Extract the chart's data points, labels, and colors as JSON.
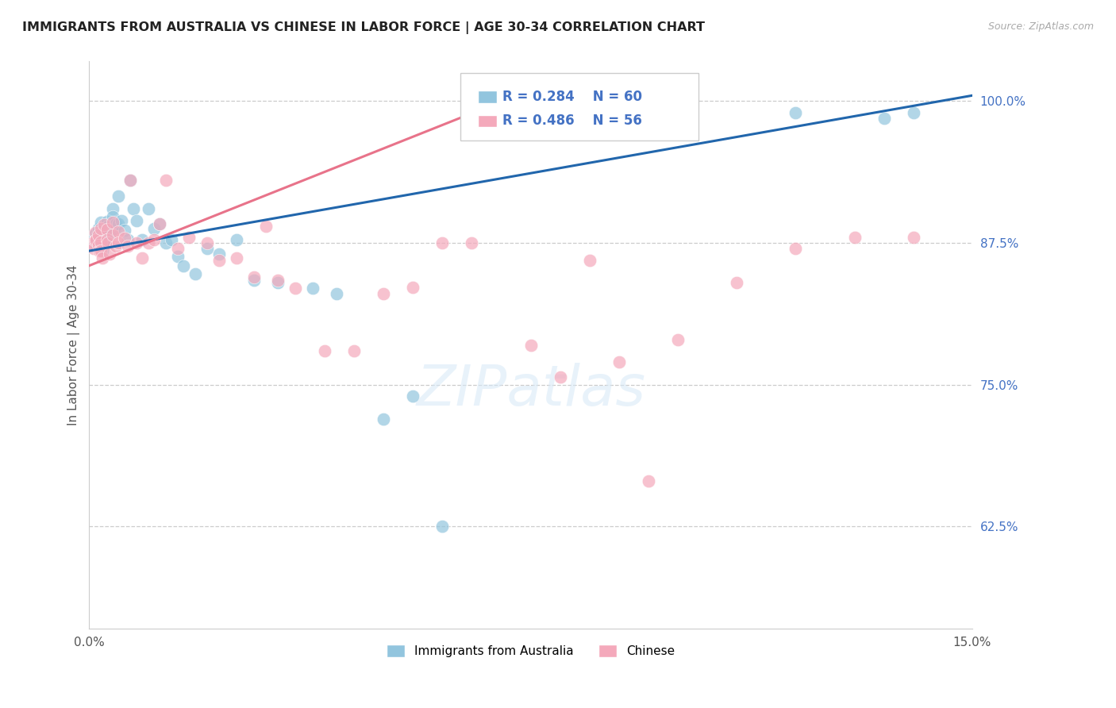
{
  "title": "IMMIGRANTS FROM AUSTRALIA VS CHINESE IN LABOR FORCE | AGE 30-34 CORRELATION CHART",
  "source": "Source: ZipAtlas.com",
  "ylabel": "In Labor Force | Age 30-34",
  "ytick_labels": [
    "100.0%",
    "87.5%",
    "75.0%",
    "62.5%"
  ],
  "ytick_values": [
    1.0,
    0.875,
    0.75,
    0.625
  ],
  "xlim": [
    0.0,
    0.15
  ],
  "ylim": [
    0.535,
    1.035
  ],
  "legend_r1": "0.284",
  "legend_n1": "60",
  "legend_r2": "0.486",
  "legend_n2": "56",
  "legend_label1": "Immigrants from Australia",
  "legend_label2": "Chinese",
  "australia_color": "#92c5de",
  "chinese_color": "#f4a9bb",
  "australia_line_color": "#2166ac",
  "chinese_line_color": "#e8738a",
  "australia_x": [
    0.0005,
    0.0007,
    0.0008,
    0.001,
    0.001,
    0.0012,
    0.0012,
    0.0015,
    0.0015,
    0.0017,
    0.002,
    0.002,
    0.002,
    0.0022,
    0.0025,
    0.003,
    0.003,
    0.003,
    0.0032,
    0.0035,
    0.004,
    0.004,
    0.0042,
    0.0045,
    0.005,
    0.005,
    0.0055,
    0.006,
    0.0065,
    0.007,
    0.0075,
    0.008,
    0.009,
    0.01,
    0.011,
    0.012,
    0.013,
    0.014,
    0.015,
    0.016,
    0.018,
    0.02,
    0.022,
    0.025,
    0.028,
    0.032,
    0.038,
    0.042,
    0.05,
    0.055,
    0.06,
    0.065,
    0.07,
    0.085,
    0.09,
    0.095,
    0.1,
    0.12,
    0.135,
    0.14
  ],
  "australia_y": [
    0.875,
    0.878,
    0.872,
    0.883,
    0.877,
    0.88,
    0.873,
    0.888,
    0.879,
    0.872,
    0.893,
    0.885,
    0.876,
    0.868,
    0.878,
    0.894,
    0.886,
    0.878,
    0.89,
    0.882,
    0.905,
    0.898,
    0.888,
    0.892,
    0.916,
    0.892,
    0.895,
    0.886,
    0.878,
    0.93,
    0.905,
    0.895,
    0.878,
    0.905,
    0.888,
    0.892,
    0.875,
    0.878,
    0.863,
    0.855,
    0.848,
    0.87,
    0.865,
    0.878,
    0.842,
    0.84,
    0.835,
    0.83,
    0.72,
    0.74,
    0.625,
    1.0,
    0.98,
    0.98,
    1.0,
    0.98,
    1.0,
    0.99,
    0.985,
    0.99
  ],
  "chinese_x": [
    0.0005,
    0.0007,
    0.001,
    0.001,
    0.0012,
    0.0015,
    0.0015,
    0.0017,
    0.002,
    0.002,
    0.002,
    0.0022,
    0.0025,
    0.003,
    0.003,
    0.0032,
    0.0035,
    0.004,
    0.004,
    0.0045,
    0.005,
    0.005,
    0.006,
    0.0065,
    0.007,
    0.008,
    0.009,
    0.01,
    0.011,
    0.012,
    0.013,
    0.015,
    0.017,
    0.02,
    0.022,
    0.025,
    0.028,
    0.03,
    0.032,
    0.035,
    0.04,
    0.045,
    0.05,
    0.055,
    0.06,
    0.065,
    0.075,
    0.08,
    0.085,
    0.09,
    0.095,
    0.1,
    0.11,
    0.12,
    0.13,
    0.14
  ],
  "chinese_y": [
    0.875,
    0.87,
    0.884,
    0.877,
    0.878,
    0.882,
    0.873,
    0.868,
    0.888,
    0.876,
    0.868,
    0.862,
    0.891,
    0.887,
    0.878,
    0.875,
    0.865,
    0.893,
    0.882,
    0.872,
    0.885,
    0.875,
    0.879,
    0.872,
    0.93,
    0.875,
    0.862,
    0.875,
    0.878,
    0.892,
    0.93,
    0.87,
    0.88,
    0.875,
    0.86,
    0.862,
    0.845,
    0.89,
    0.842,
    0.835,
    0.78,
    0.78,
    0.83,
    0.836,
    0.875,
    0.875,
    0.785,
    0.757,
    0.86,
    0.77,
    0.665,
    0.79,
    0.84,
    0.87,
    0.88,
    0.88
  ]
}
